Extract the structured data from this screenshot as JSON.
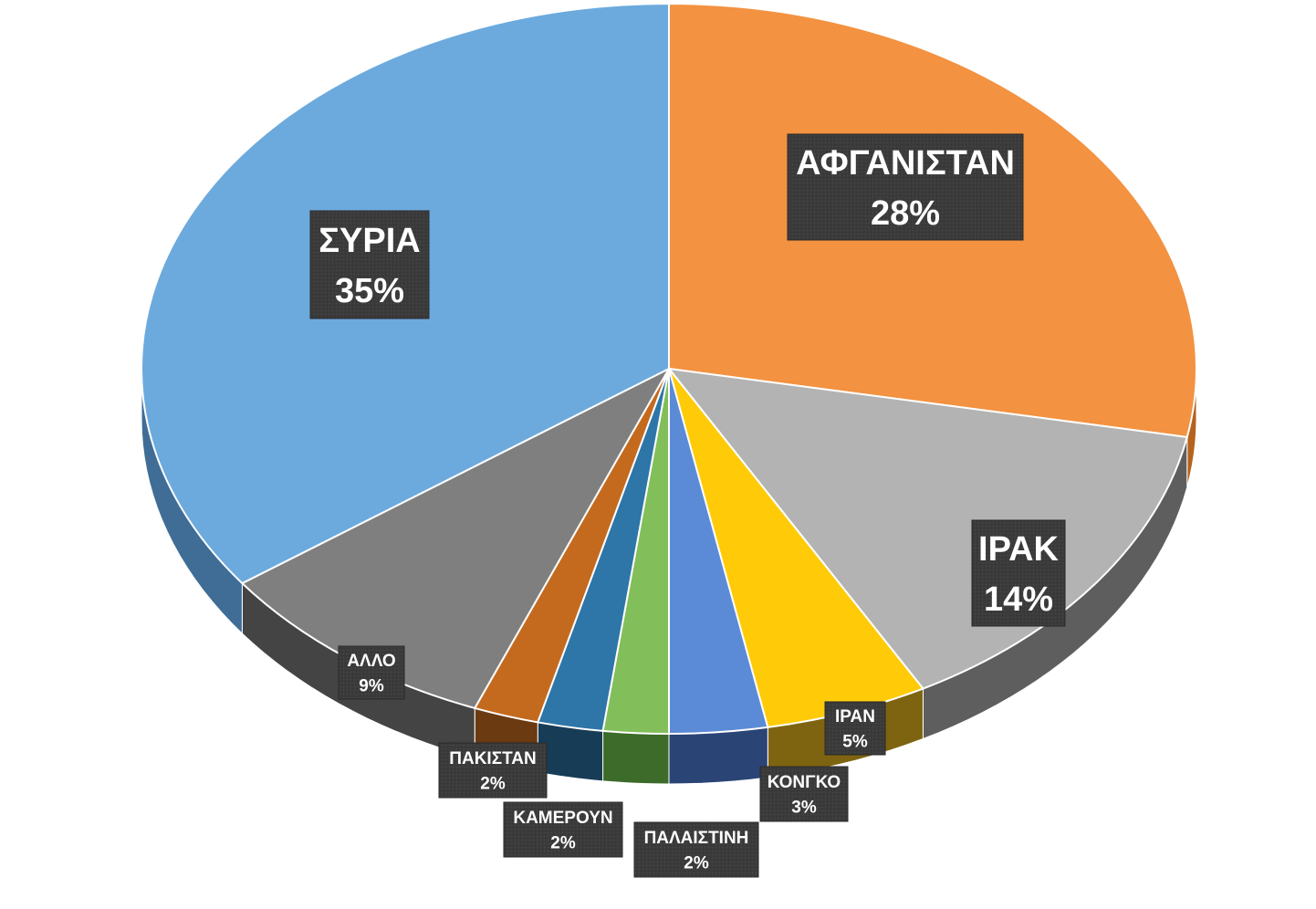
{
  "chart_data": {
    "type": "pie",
    "title": "",
    "three_d": true,
    "start_angle_deg": 0,
    "direction": "clockwise",
    "slices": [
      {
        "label": "ΑΦΓΑΝΙΣΤΑΝ",
        "value": 28,
        "value_label": "28%",
        "color": "#F39241",
        "side_color": "#B5621D"
      },
      {
        "label": "ΙΡΑΚ",
        "value": 14,
        "value_label": "14%",
        "color": "#B3B3B3",
        "side_color": "#5E5E5E"
      },
      {
        "label": "ΙΡΑΝ",
        "value": 5,
        "value_label": "5%",
        "color": "#FFCB08",
        "side_color": "#7E6410"
      },
      {
        "label": "ΚΟΝΓΚΟ",
        "value": 3,
        "value_label": "3%",
        "color": "#5B8BD6",
        "side_color": "#2A4476"
      },
      {
        "label": "ΠΑΛΑΙΣΤΙΝΗ",
        "value": 2,
        "value_label": "2%",
        "color": "#82BE5A",
        "side_color": "#3D6B2A"
      },
      {
        "label": "ΚΑΜΕΡΟΥΝ",
        "value": 2,
        "value_label": "2%",
        "color": "#2E75A8",
        "side_color": "#173C56"
      },
      {
        "label": "ΠΑΚΙΣΤΑΝ",
        "value": 2,
        "value_label": "2%",
        "color": "#C46A1F",
        "side_color": "#6B3A11"
      },
      {
        "label": "ΑΛΛΟ",
        "value": 9,
        "value_label": "9%",
        "color": "#7F7F7F",
        "side_color": "#444444"
      },
      {
        "label": "ΣΥΡΙΑ",
        "value": 35,
        "value_label": "35%",
        "color": "#6CAADD",
        "side_color": "#3F6D96"
      }
    ],
    "legend": "none",
    "data_label_style": "dark boxes with white bold text"
  }
}
